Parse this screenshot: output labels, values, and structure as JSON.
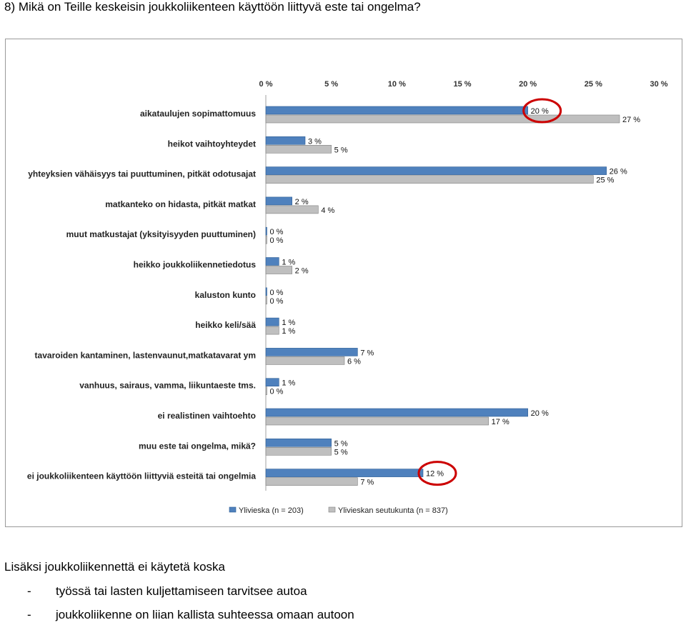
{
  "question": "8) Mikä on Teille keskeisin joukkoliikenteen käyttöön liittyvä este tai ongelma?",
  "chart_data": {
    "type": "bar",
    "orientation": "horizontal",
    "xlim": [
      0,
      30
    ],
    "ticks": [
      "0 %",
      "5 %",
      "10 %",
      "15 %",
      "20 %",
      "25 %",
      "30 %"
    ],
    "tick_values": [
      0,
      5,
      10,
      15,
      20,
      25,
      30
    ],
    "grid": false,
    "legend_position": "bottom",
    "categories": [
      "aikataulujen sopimattomuus",
      "heikot vaihtoyhteydet",
      "yhteyksien vähäisyys tai puuttuminen, pitkät odotusajat",
      "matkanteko on hidasta, pitkät matkat",
      "muut matkustajat (yksityisyyden puuttuminen)",
      "heikko joukkoliikennetiedotus",
      "kaluston kunto",
      "heikko keli/sää",
      "tavaroiden kantaminen, lastenvaunut,matkatavarat ym",
      "vanhuus, sairaus, vamma, liikuntaeste tms.",
      "ei realistinen vaihtoehto",
      "muu este tai ongelma, mikä?",
      "ei joukkoliikenteen käyttöön liittyviä esteitä tai ongelmia"
    ],
    "series": [
      {
        "name": "Ylivieska  (n = 203)",
        "color": "#4f81bd",
        "values": [
          20,
          3,
          26,
          2,
          0,
          1,
          0,
          1,
          7,
          1,
          20,
          5,
          12
        ],
        "labels": [
          "20 %",
          "3 %",
          "26 %",
          "2 %",
          "0 %",
          "1 %",
          "0 %",
          "1 %",
          "7 %",
          "1 %",
          "20 %",
          "5 %",
          "12 %"
        ]
      },
      {
        "name": "Ylivieskan seutukunta  (n = 837)",
        "color": "#bfbfbf",
        "values": [
          27,
          5,
          25,
          4,
          0,
          2,
          0,
          1,
          6,
          0,
          17,
          5,
          7
        ],
        "labels": [
          "27 %",
          "5 %",
          "25 %",
          "4 %",
          "0 %",
          "2 %",
          "0 %",
          "1 %",
          "6 %",
          "0 %",
          "17 %",
          "5 %",
          "7 %"
        ]
      }
    ],
    "highlight_circles": [
      {
        "category_index": 0,
        "series_index": 0,
        "color": "#cc0000"
      },
      {
        "category_index": 12,
        "series_index": 0,
        "color": "#cc0000"
      }
    ]
  },
  "note": {
    "intro": "Lisäksi joukkoliikennettä ei käytetä koska",
    "dash": "-",
    "items": [
      "työssä tai lasten kuljettamiseen tarvitsee autoa",
      "joukkoliikenne on liian kallista suhteessa omaan autoon"
    ]
  }
}
